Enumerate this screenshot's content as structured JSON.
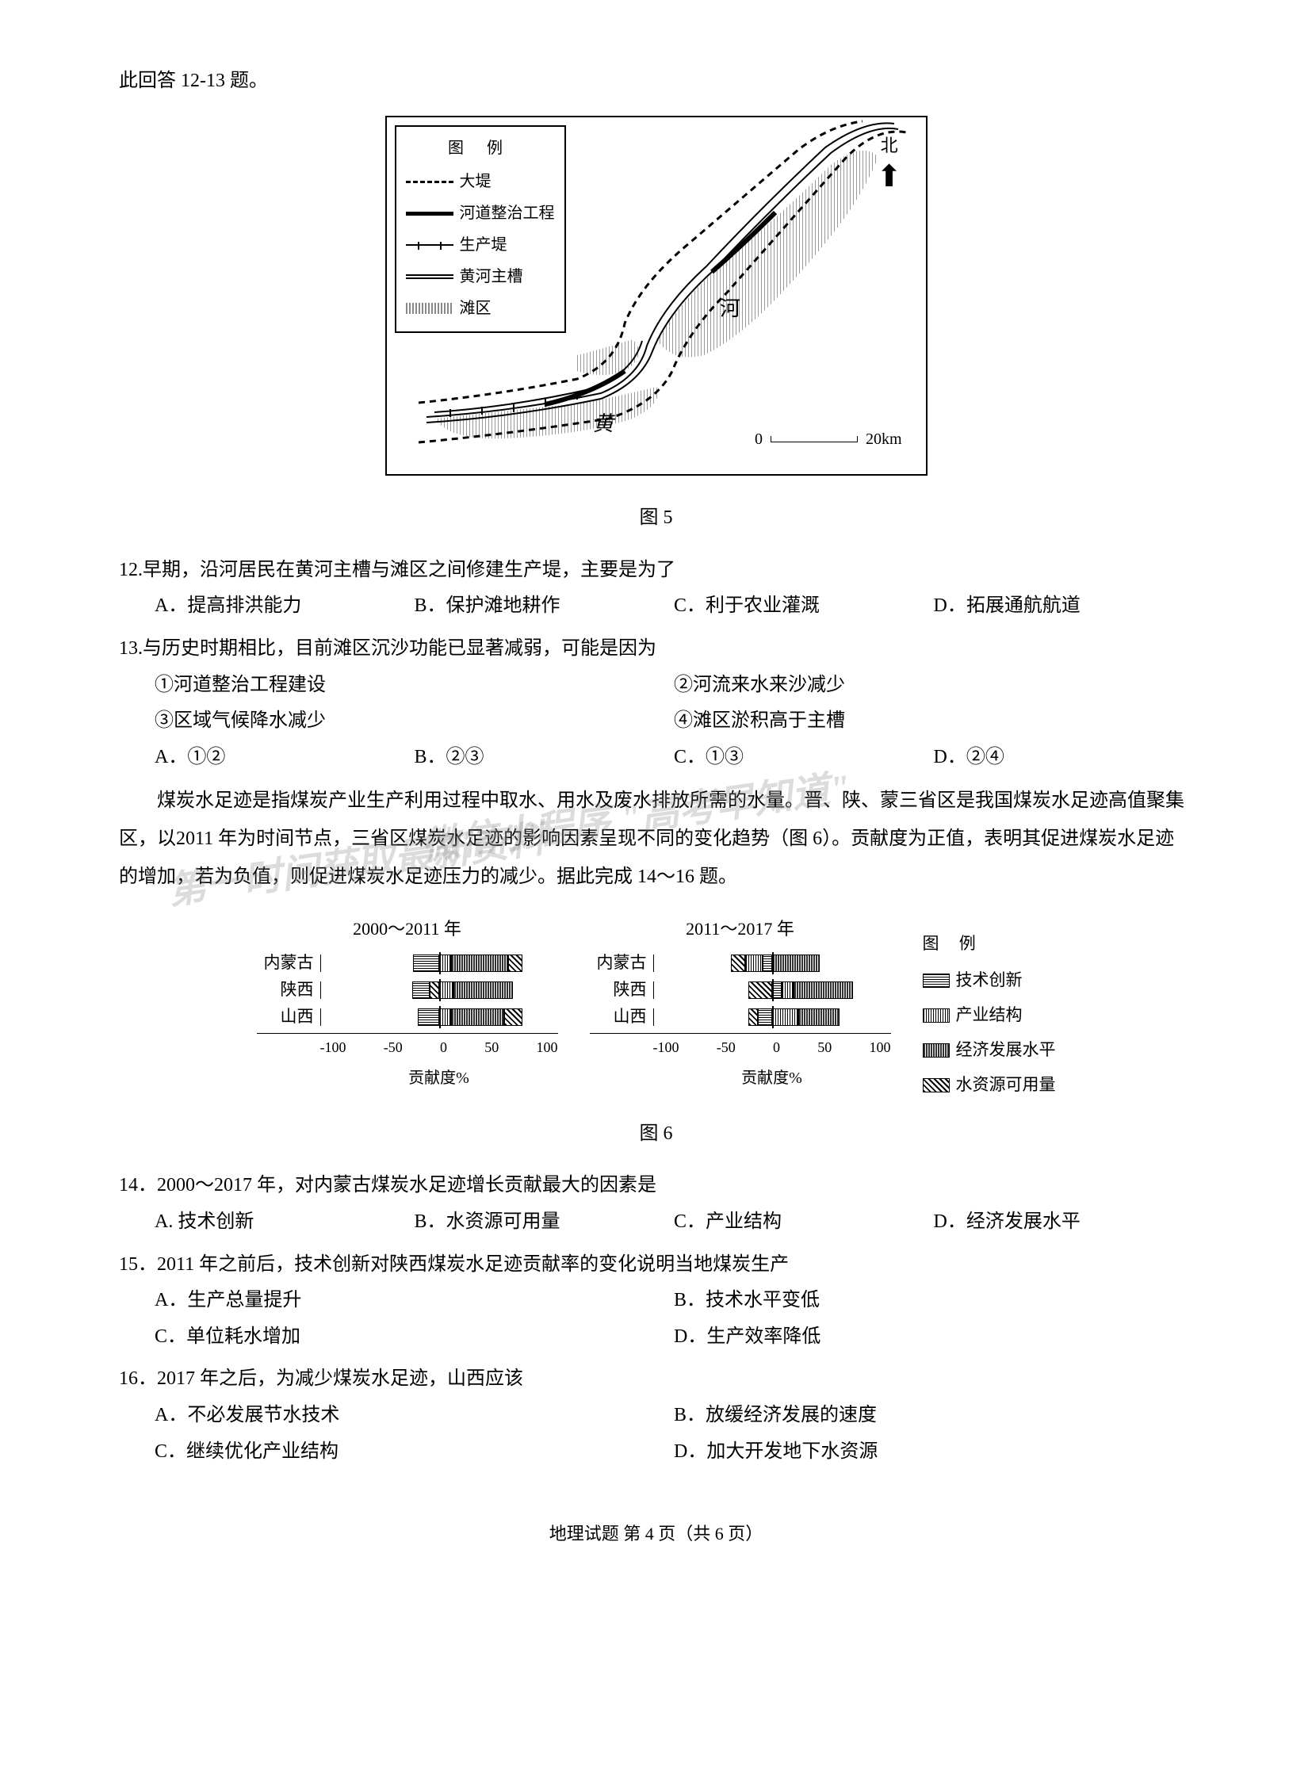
{
  "intro": "此回答 12-13 题。",
  "fig5": {
    "caption": "图 5",
    "legend_title": "图 例",
    "legend_items": [
      {
        "label": "大堤"
      },
      {
        "label": "河道整治工程"
      },
      {
        "label": "生产堤"
      },
      {
        "label": "黄河主槽"
      },
      {
        "label": "滩区"
      }
    ],
    "compass_label": "北",
    "river_label_1": "河",
    "river_label_2": "黄",
    "scale_start": "0",
    "scale_end": "20km"
  },
  "q12": {
    "stem": "12.早期，沿河居民在黄河主槽与滩区之间修建生产堤，主要是为了",
    "options": [
      "A．提高排洪能力",
      "B．保护滩地耕作",
      "C．利于农业灌溉",
      "D．拓展通航航道"
    ]
  },
  "q13": {
    "stem": "13.与历史时期相比，目前滩区沉沙功能已显著减弱，可能是因为",
    "subs": [
      "①河道整治工程建设",
      "②河流来水来沙减少",
      "③区域气候降水减少",
      "④滩区淤积高于主槽"
    ],
    "options": [
      "A．①②",
      "B．②③",
      "C．①③",
      "D．②④"
    ]
  },
  "passage": "煤炭水足迹是指煤炭产业生产利用过程中取水、用水及废水排放所需的水量。晋、陕、蒙三省区是我国煤炭水足迹高值聚集区，以2011 年为时间节点，三省区煤炭水足迹的影响因素呈现不同的变化趋势（图 6）。贡献度为正值，表明其促进煤炭水足迹的增加，若为负值，则促进煤炭水足迹压力的减少。据此完成 14～16 题。",
  "watermark1": "微信小程序 \"高考早知道\"",
  "watermark2": "第一时间获取最新资料",
  "fig6": {
    "caption": "图 6",
    "left_title": "2000～2011 年",
    "right_title": "2011～2017 年",
    "regions": [
      "内蒙古",
      "陕西",
      "山西"
    ],
    "axis_ticks": [
      "-100",
      "-50",
      "0",
      "50",
      "100"
    ],
    "axis_label": "贡献度%",
    "legend_title": "图 例",
    "legend_items": [
      "技术创新",
      "产业结构",
      "经济发展水平",
      "水资源可用量"
    ],
    "left_data": {
      "neimeng": {
        "neg": [
          {
            "cls": "seg-tech",
            "w": 22
          }
        ],
        "pos": [
          {
            "cls": "seg-ind",
            "w": 10
          },
          {
            "cls": "seg-econ",
            "w": 48
          },
          {
            "cls": "seg-water",
            "w": 12
          }
        ]
      },
      "shaanxi": {
        "neg": [
          {
            "cls": "seg-tech",
            "w": 15
          },
          {
            "cls": "seg-water",
            "w": 8
          }
        ],
        "pos": [
          {
            "cls": "seg-ind",
            "w": 12
          },
          {
            "cls": "seg-econ",
            "w": 50
          }
        ]
      },
      "shanxi": {
        "neg": [
          {
            "cls": "seg-tech",
            "w": 18
          }
        ],
        "pos": [
          {
            "cls": "seg-ind",
            "w": 10
          },
          {
            "cls": "seg-econ",
            "w": 45
          },
          {
            "cls": "seg-water",
            "w": 15
          }
        ]
      }
    },
    "right_data": {
      "neimeng": {
        "neg": [
          {
            "cls": "seg-water",
            "w": 12
          },
          {
            "cls": "seg-ind",
            "w": 15
          },
          {
            "cls": "seg-tech",
            "w": 8
          }
        ],
        "pos": [
          {
            "cls": "seg-econ",
            "w": 40
          }
        ]
      },
      "shaanxi": {
        "neg": [
          {
            "cls": "seg-water",
            "w": 20
          }
        ],
        "pos": [
          {
            "cls": "seg-tech",
            "w": 8
          },
          {
            "cls": "seg-ind",
            "w": 10
          },
          {
            "cls": "seg-econ",
            "w": 50
          }
        ]
      },
      "shanxi": {
        "neg": [
          {
            "cls": "seg-water",
            "w": 8
          },
          {
            "cls": "seg-tech",
            "w": 12
          }
        ],
        "pos": [
          {
            "cls": "seg-ind",
            "w": 22
          },
          {
            "cls": "seg-econ",
            "w": 35
          }
        ]
      }
    }
  },
  "q14": {
    "stem": "14．2000～2017 年，对内蒙古煤炭水足迹增长贡献最大的因素是",
    "options": [
      "A. 技术创新",
      "B．水资源可用量",
      "C．产业结构",
      "D．经济发展水平"
    ]
  },
  "q15": {
    "stem": "15．2011 年之前后，技术创新对陕西煤炭水足迹贡献率的变化说明当地煤炭生产",
    "options": [
      "A．生产总量提升",
      "B．技术水平变低",
      "C．单位耗水增加",
      "D．生产效率降低"
    ]
  },
  "q16": {
    "stem": "16．2017 年之后，为减少煤炭水足迹，山西应该",
    "options": [
      "A．不必发展节水技术",
      "B．放缓经济发展的速度",
      "C．继续优化产业结构",
      "D．加大开发地下水资源"
    ]
  },
  "footer": "地理试题  第 4 页（共 6 页）"
}
